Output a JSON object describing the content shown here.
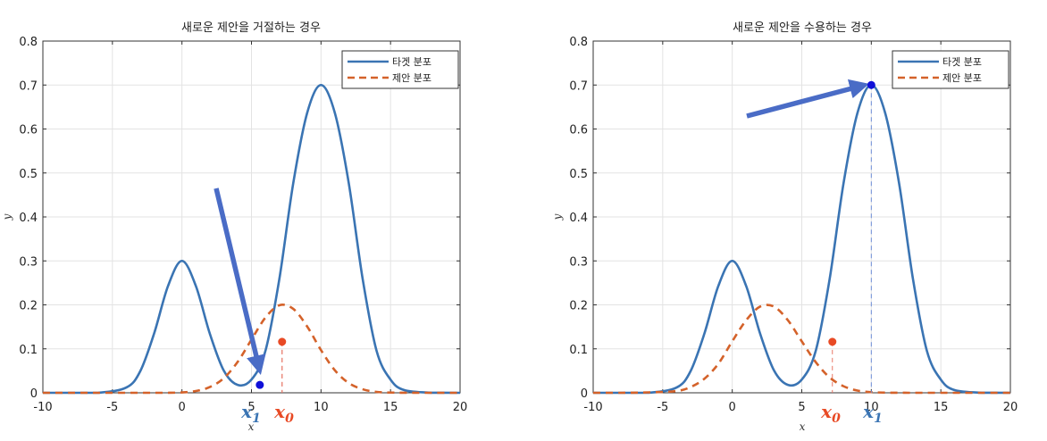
{
  "chart_data": [
    {
      "type": "line",
      "title": "새로운 제안을 거절하는 경우",
      "xlabel": "x",
      "ylabel": "y",
      "xlim": [
        -10,
        20
      ],
      "ylim": [
        0,
        0.8
      ],
      "xticks": [
        "-10",
        "-5",
        "0",
        "5",
        "10",
        "15",
        "20"
      ],
      "yticks": [
        "0",
        "0.1",
        "0.2",
        "0.3",
        "0.4",
        "0.5",
        "0.6",
        "0.7",
        "0.8"
      ],
      "grid": true,
      "legend_position": "top-right",
      "x": [
        -10,
        -8,
        -6,
        -4,
        -3,
        -2,
        -1,
        0,
        1,
        2,
        3,
        4,
        5,
        6,
        7,
        8,
        9,
        10,
        11,
        12,
        13,
        14,
        15,
        16,
        18,
        20
      ],
      "series": [
        {
          "name": "타겟 분포",
          "color": "#3a74b3",
          "style": "solid",
          "values": [
            0,
            0,
            0.0001,
            0.012,
            0.049,
            0.135,
            0.243,
            0.3,
            0.243,
            0.135,
            0.051,
            0.018,
            0.03,
            0.095,
            0.258,
            0.476,
            0.636,
            0.7,
            0.636,
            0.476,
            0.258,
            0.095,
            0.03,
            0.006,
            0.0001,
            0
          ]
        },
        {
          "name": "제안 분포",
          "color": "#d4622a",
          "style": "dashed",
          "values": [
            0,
            0,
            0,
            0,
            0,
            0,
            0,
            0.0009,
            0.004,
            0.013,
            0.033,
            0.07,
            0.121,
            0.171,
            0.199,
            0.191,
            0.151,
            0.097,
            0.051,
            0.022,
            0.008,
            0.002,
            0.0005,
            0.0001,
            0,
            0
          ]
        }
      ],
      "points": [
        {
          "label": "x₁",
          "x": 5.6,
          "y": 0.018,
          "color": "#1010d8"
        },
        {
          "label": "x₀",
          "x": 7.2,
          "y": 0.116,
          "color": "#e84a25"
        }
      ],
      "annotation_labels": {
        "x1": "x",
        "x1_sub": "1",
        "x0": "x",
        "x0_sub": "0"
      }
    },
    {
      "type": "line",
      "title": "새로운 제안을 수용하는 경우",
      "xlabel": "x",
      "ylabel": "y",
      "xlim": [
        -10,
        20
      ],
      "ylim": [
        0,
        0.8
      ],
      "xticks": [
        "-10",
        "-5",
        "0",
        "5",
        "10",
        "15",
        "20"
      ],
      "yticks": [
        "0",
        "0.1",
        "0.2",
        "0.3",
        "0.4",
        "0.5",
        "0.6",
        "0.7",
        "0.8"
      ],
      "grid": true,
      "legend_position": "top-right",
      "x": [
        -10,
        -8,
        -6,
        -4,
        -3,
        -2,
        -1,
        0,
        1,
        2,
        3,
        4,
        5,
        6,
        7,
        8,
        9,
        10,
        11,
        12,
        13,
        14,
        15,
        16,
        18,
        20
      ],
      "series": [
        {
          "name": "타겟 분포",
          "color": "#3a74b3",
          "style": "solid",
          "values": [
            0,
            0,
            0.0001,
            0.012,
            0.049,
            0.135,
            0.243,
            0.3,
            0.243,
            0.135,
            0.051,
            0.018,
            0.03,
            0.095,
            0.258,
            0.476,
            0.636,
            0.7,
            0.636,
            0.476,
            0.258,
            0.095,
            0.03,
            0.006,
            0.0001,
            0
          ]
        },
        {
          "name": "제안 분포",
          "color": "#d4622a",
          "style": "dashed",
          "values": [
            0,
            0,
            0.001,
            0.004,
            0.013,
            0.032,
            0.066,
            0.117,
            0.165,
            0.196,
            0.196,
            0.165,
            0.117,
            0.07,
            0.035,
            0.015,
            0.005,
            0.0015,
            0.0004,
            0.0001,
            0,
            0,
            0,
            0,
            0,
            0
          ]
        }
      ],
      "points": [
        {
          "label": "x₀",
          "x": 7.2,
          "y": 0.116,
          "color": "#e84a25"
        },
        {
          "label": "x₁",
          "x": 10,
          "y": 0.7,
          "color": "#1010d8"
        }
      ],
      "annotation_labels": {
        "x1": "x",
        "x1_sub": "1",
        "x0": "x",
        "x0_sub": "0"
      }
    }
  ]
}
